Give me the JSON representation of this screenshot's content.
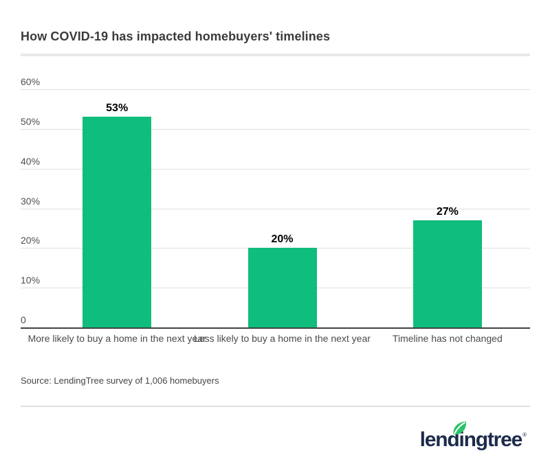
{
  "title": "How COVID-19 has impacted homebuyers' timelines",
  "source": "Source: LendingTree survey of 1,006 homebuyers",
  "logo": {
    "wordmark": "lendingtree",
    "registered": "®",
    "leaf_icon": "leaf-icon"
  },
  "colors": {
    "bar": "#0fbe7c",
    "gridline": "#e0e0e0",
    "zero_axis": "#414141",
    "title_text": "#3b3b3b",
    "axis_text": "#4f4f4f",
    "category_text": "#4a4a4a",
    "data_label_text": "#000000",
    "logo_navy": "#1d2b4c",
    "leaf_green": "#2bc26a"
  },
  "chart_data": {
    "type": "bar",
    "title": "How COVID-19 has impacted homebuyers' timelines",
    "categories": [
      "More likely to buy a home in the next year",
      "Less likely to buy a home in the next year",
      "Timeline has not changed"
    ],
    "values": [
      53,
      20,
      27
    ],
    "data_labels": [
      "53%",
      "20%",
      "27%"
    ],
    "xlabel": "",
    "ylabel": "",
    "ylim": [
      0,
      60
    ],
    "yticks": [
      {
        "value": 60,
        "label": "60%"
      },
      {
        "value": 50,
        "label": "50%"
      },
      {
        "value": 40,
        "label": "40%"
      },
      {
        "value": 30,
        "label": "30%"
      },
      {
        "value": 20,
        "label": "20%"
      },
      {
        "value": 10,
        "label": "10%"
      },
      {
        "value": 0,
        "label": "0"
      }
    ],
    "grid": "horizontal",
    "legend": "none"
  }
}
